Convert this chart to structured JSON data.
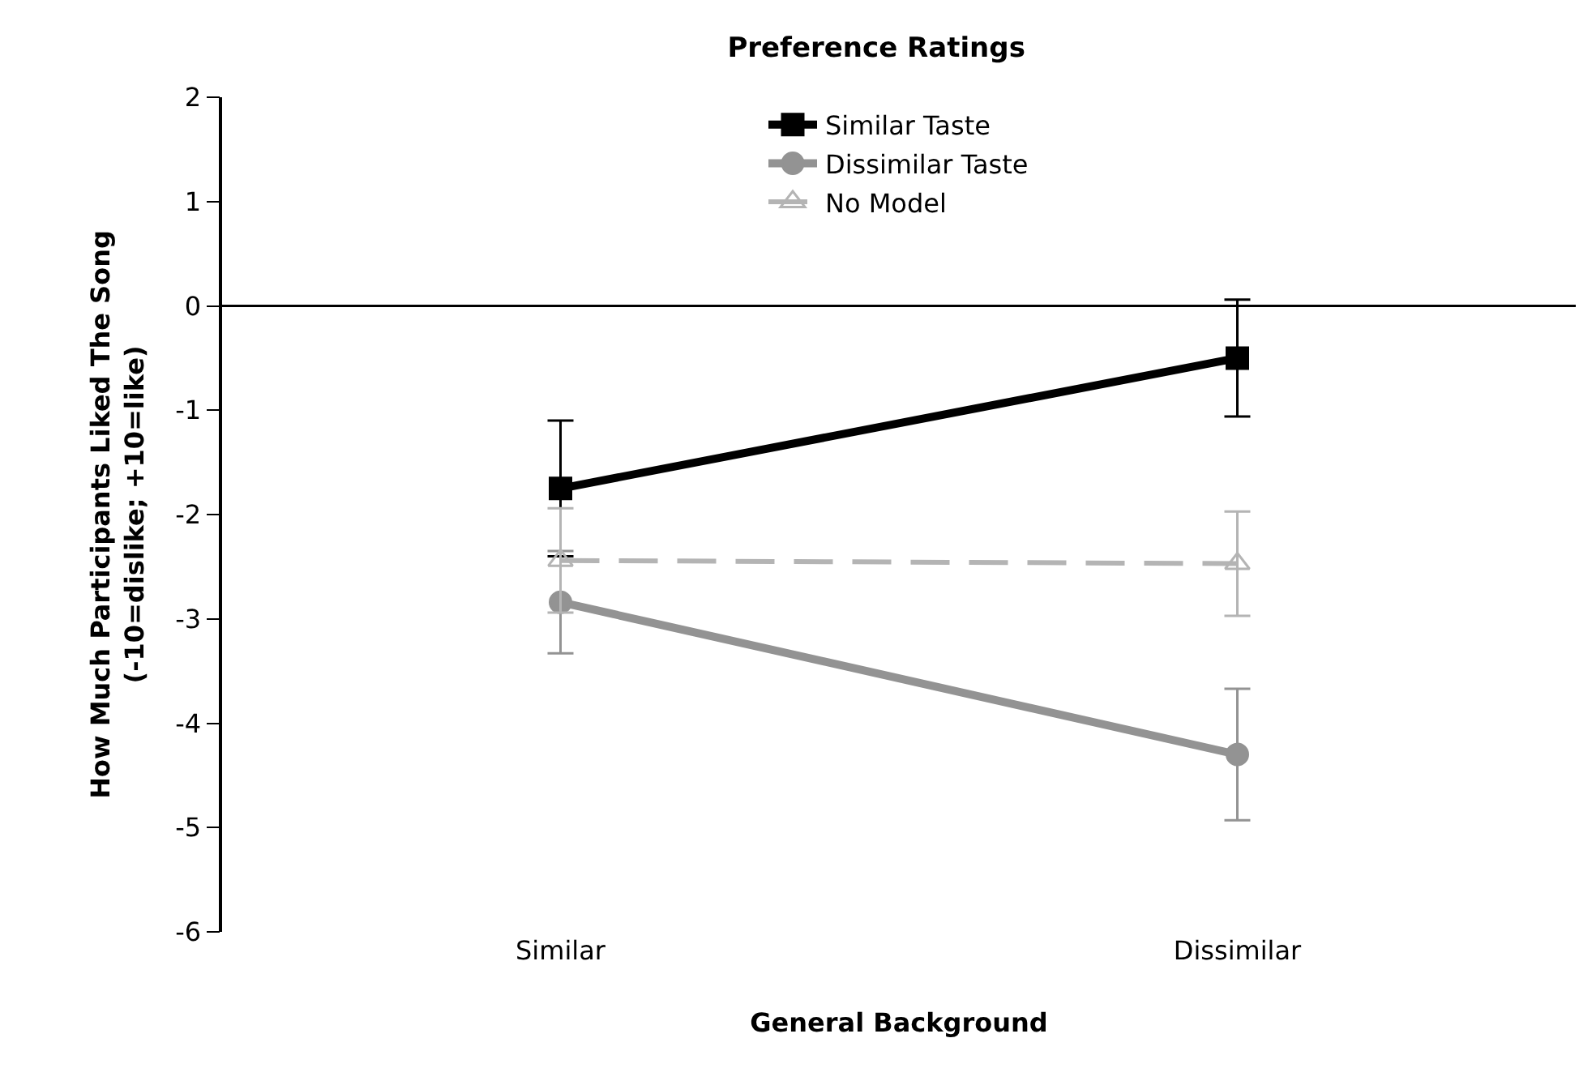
{
  "chart_data": {
    "type": "line",
    "title": "Preference Ratings",
    "xlabel": "General Background",
    "ylabel": "How Much Participants Liked The Song\n(-10=dislike; +10=like)",
    "categories": [
      "Similar",
      "Dissimilar"
    ],
    "series": [
      {
        "name": "Similar Taste",
        "color": "#000000",
        "values": [
          -1.75,
          -0.5
        ],
        "errors": [
          0.65,
          0.56
        ],
        "marker": "square",
        "line_style": "solid"
      },
      {
        "name": "Dissimilar Taste",
        "color": "#939393",
        "values": [
          -2.84,
          -4.3
        ],
        "errors": [
          0.49,
          0.63
        ],
        "marker": "circle",
        "line_style": "solid"
      },
      {
        "name": "No Model",
        "color": "#b4b4b4",
        "values": [
          -2.44,
          -2.47
        ],
        "errors": [
          0.5,
          0.5
        ],
        "marker": "triangle",
        "line_style": "dashed"
      }
    ],
    "ylim": [
      -6,
      2
    ],
    "yticks": [
      -6,
      -5,
      -4,
      -3,
      -2,
      -1,
      0,
      1,
      2
    ],
    "ref_lines": [
      {
        "axis": "y",
        "value": 0,
        "color": "#000000"
      }
    ],
    "grid": false,
    "legend": "top"
  }
}
